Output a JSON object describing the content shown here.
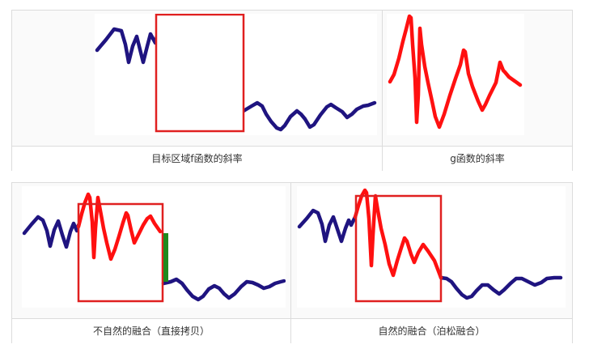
{
  "colors": {
    "target_curve": "#1f1480",
    "source_curve": "#ff1010",
    "rectangle": "#e02020",
    "seam": "#1e8a1e",
    "border": "#dcdcdc"
  },
  "captions": {
    "top_left": "目标区域f函数的斜率",
    "top_right": "g函数的斜率",
    "bottom_left": "不自然的融合（直接拷贝）",
    "bottom_right": "自然的融合（泊松融合）"
  }
}
